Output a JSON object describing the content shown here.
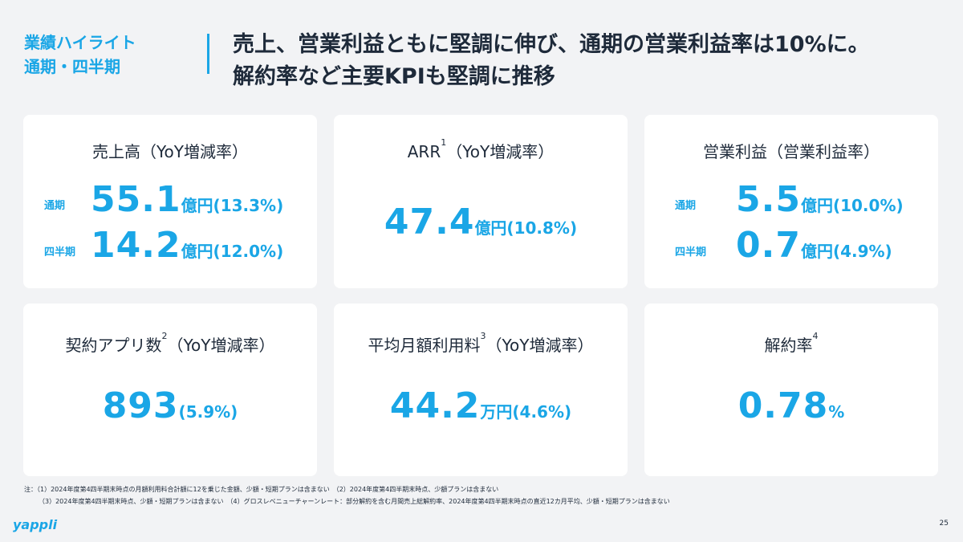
{
  "header": {
    "tag_line1": "業績ハイライト",
    "tag_line2": "通期・四半期",
    "headline_line1": "売上、営業利益ともに堅調に伸び、通期の営業利益率は10%に。",
    "headline_line2": "解約率など主要KPIも堅調に推移"
  },
  "cards": {
    "revenue": {
      "title": "売上高（YoY増減率）",
      "rows": [
        {
          "label": "通期",
          "value": "55.1",
          "unit": "億円(13.3%)"
        },
        {
          "label": "四半期",
          "value": "14.2",
          "unit": "億円(12.0%)"
        }
      ]
    },
    "arr": {
      "title_pre": "ARR",
      "sup": "1",
      "title_post": "（YoY増減率）",
      "value": "47.4",
      "unit": "億円(10.8%)"
    },
    "op_profit": {
      "title": "営業利益（営業利益率）",
      "rows": [
        {
          "label": "通期",
          "value": "5.5",
          "unit": "億円(10.0%)"
        },
        {
          "label": "四半期",
          "value": "0.7",
          "unit": "億円(4.9%)"
        }
      ]
    },
    "apps": {
      "title_pre": "契約アプリ数",
      "sup": "2",
      "title_post": "（YoY増減率）",
      "value": "893",
      "unit": "(5.9%)"
    },
    "avg_fee": {
      "title_pre": "平均月額利用料",
      "sup": "3",
      "title_post": "（YoY増減率）",
      "value": "44.2",
      "unit": "万円(4.6%)"
    },
    "churn": {
      "title_pre": "解約率",
      "sup": "4",
      "value": "0.78",
      "unit": "%"
    }
  },
  "footnote": {
    "line1": "注：（1）2024年度第4四半期末時点の月額利用料合計額に12を乗じた金額、少額・短期プランは含まない　（2）2024年度第4四半期末時点、少額プランは含まない",
    "line2": "（3）2024年度第4四半期末時点、少額・短期プランは含まない　（4）グロスレベニューチャーンレート：部分解約を含む月間売上総解約率、2024年度第4四半期末時点の直近12カ月平均、少額・短期プランは含まない"
  },
  "logo": "yappli",
  "page_number": "25",
  "colors": {
    "accent": "#1aa6e6",
    "text": "#1e2a3a",
    "background": "#f2f3f5",
    "card": "#ffffff"
  }
}
